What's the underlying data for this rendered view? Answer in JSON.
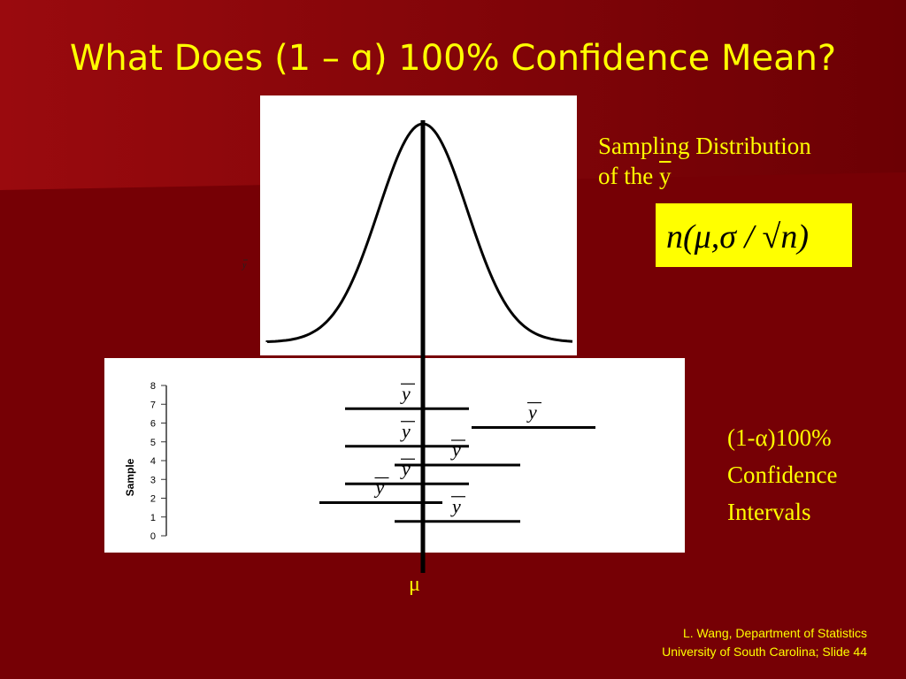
{
  "slide": {
    "title": "What Does (1 – ɑ) 100% Confidence Mean?",
    "bg_color": "#760005",
    "accent_color": "#ffff00"
  },
  "dist_panel": {
    "small_y_label": "y",
    "heading_line1": "Sampling Distribution",
    "heading_line2_prefix": "of the ",
    "heading_line2_var": "y",
    "formula": "n(μ,σ / √n)"
  },
  "ci_panel": {
    "y_axis_label": "Sample",
    "y_ticks": [
      "0",
      "1",
      "2",
      "3",
      "4",
      "5",
      "6",
      "7",
      "8"
    ],
    "interval_mean_label": "y",
    "intervals": [
      {
        "sample": 7,
        "position": "left"
      },
      {
        "sample": 6,
        "position": "right"
      },
      {
        "sample": 5,
        "position": "left"
      },
      {
        "sample": 4,
        "position": "center"
      },
      {
        "sample": 3,
        "position": "left"
      },
      {
        "sample": 2,
        "position": "far-left"
      },
      {
        "sample": 1,
        "position": "center"
      }
    ],
    "caption_line1": "(1-α)100%",
    "caption_line2": "Confidence",
    "caption_line3": "Intervals"
  },
  "mu_label": "μ",
  "footer": {
    "line1": "L. Wang, Department of Statistics",
    "line2": "University of South Carolina; Slide 44"
  }
}
